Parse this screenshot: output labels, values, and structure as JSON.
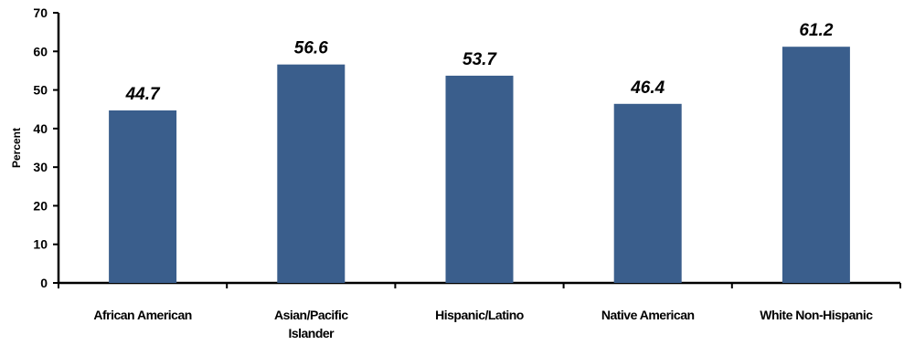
{
  "chart_data": {
    "type": "bar",
    "categories": [
      "African American",
      "Asian/Pacific Islander",
      "Hispanic/Latino",
      "Native American",
      "White Non-Hispanic"
    ],
    "category_lines": [
      [
        "African American"
      ],
      [
        "Asian/Pacific",
        "Islander"
      ],
      [
        "Hispanic/Latino"
      ],
      [
        "Native American"
      ],
      [
        "White Non-Hispanic"
      ]
    ],
    "values": [
      44.7,
      56.6,
      53.7,
      46.4,
      61.2
    ],
    "value_labels": [
      "44.7",
      "56.6",
      "53.7",
      "46.4",
      "61.2"
    ],
    "ylabel": "Percent",
    "ylim": [
      0,
      70
    ],
    "yticks": [
      0,
      10,
      20,
      30,
      40,
      50,
      60,
      70
    ],
    "grid": false,
    "bar_color": "#3A5E8C"
  }
}
